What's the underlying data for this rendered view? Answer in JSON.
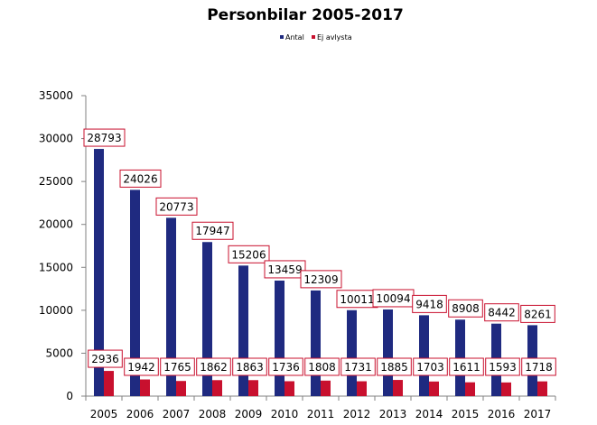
{
  "chart_data": {
    "type": "bar",
    "title": "Personbilar 2005-2017",
    "xlabel": "",
    "ylabel": "",
    "categories": [
      "2005",
      "2006",
      "2007",
      "2008",
      "2009",
      "2010",
      "2011",
      "2012",
      "2013",
      "2014",
      "2015",
      "2016",
      "2017"
    ],
    "series": [
      {
        "name": "Antal",
        "color": "#1f2a80",
        "values": [
          28793,
          24026,
          20773,
          17947,
          15206,
          13459,
          12309,
          10011,
          10094,
          9418,
          8908,
          8442,
          8261
        ]
      },
      {
        "name": "Ej avlysta",
        "color": "#c8102e",
        "values": [
          2936,
          1942,
          1765,
          1862,
          1863,
          1736,
          1808,
          1731,
          1885,
          1703,
          1611,
          1593,
          1718
        ]
      }
    ],
    "ylim": [
      0,
      35000
    ],
    "yticks": [
      0,
      5000,
      10000,
      15000,
      20000,
      25000,
      30000,
      35000
    ],
    "grid": false,
    "legend_position": "top-center",
    "data_labels": true,
    "data_label_border_color": "#c8102e"
  }
}
